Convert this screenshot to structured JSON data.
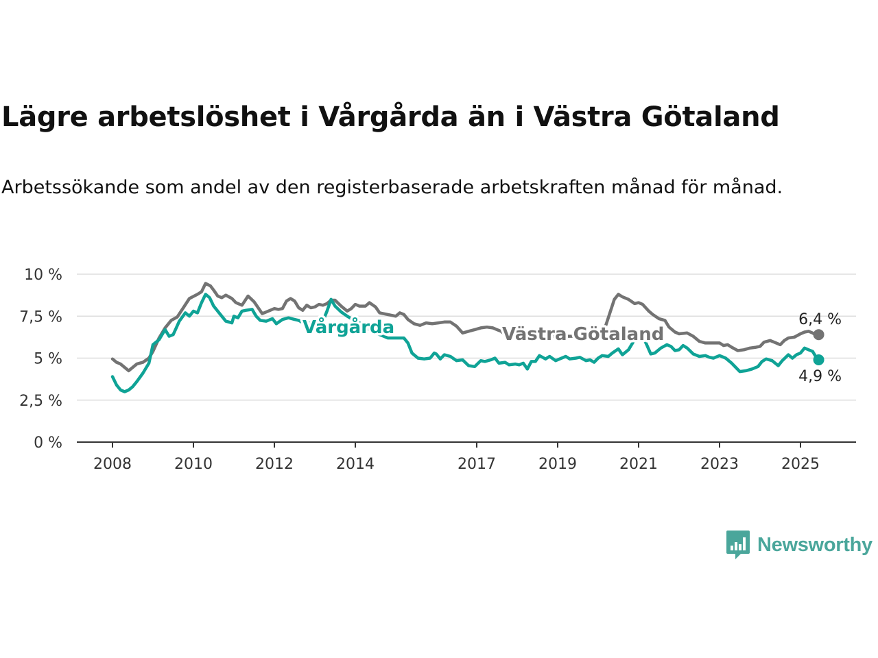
{
  "title": "Lägre arbetslöshet i Vårgårda än i Västra Götaland",
  "subtitle": "Arbetssökande som andel av den registerbaserade arbetskraften månad för månad.",
  "logo": {
    "text": "Newsworthy",
    "icon": "newsworthy-chart-icon",
    "color": "#4aa69b"
  },
  "chart_data": {
    "type": "line",
    "ylim": [
      0,
      10
    ],
    "y_ticks": [
      {
        "value": 0,
        "label": "0 %"
      },
      {
        "value": 2.5,
        "label": "2,5 %"
      },
      {
        "value": 5,
        "label": "5 %"
      },
      {
        "value": 7.5,
        "label": "7,5 %"
      },
      {
        "value": 10,
        "label": "10 %"
      }
    ],
    "x_ticks": [
      {
        "value": 2008,
        "label": "2008"
      },
      {
        "value": 2010,
        "label": "2010"
      },
      {
        "value": 2012,
        "label": "2012"
      },
      {
        "value": 2014,
        "label": "2014"
      },
      {
        "value": 2017,
        "label": "2017"
      },
      {
        "value": 2019,
        "label": "2019"
      },
      {
        "value": 2021,
        "label": "2021"
      },
      {
        "value": 2023,
        "label": "2023"
      },
      {
        "value": 2025,
        "label": "2025"
      }
    ],
    "grid": true,
    "series": [
      {
        "name": "Västra Götaland",
        "color": "#737373",
        "end_label": "6,4 %",
        "points": [
          [
            2008.0,
            4.95
          ],
          [
            2008.1,
            4.75
          ],
          [
            2008.2,
            4.65
          ],
          [
            2008.3,
            4.45
          ],
          [
            2008.4,
            4.25
          ],
          [
            2008.5,
            4.45
          ],
          [
            2008.6,
            4.65
          ],
          [
            2008.75,
            4.75
          ],
          [
            2008.9,
            5.0
          ],
          [
            2009.0,
            5.4
          ],
          [
            2009.15,
            6.2
          ],
          [
            2009.3,
            6.8
          ],
          [
            2009.45,
            7.25
          ],
          [
            2009.6,
            7.45
          ],
          [
            2009.75,
            8.0
          ],
          [
            2009.9,
            8.55
          ],
          [
            2010.1,
            8.8
          ],
          [
            2010.2,
            8.95
          ],
          [
            2010.3,
            9.45
          ],
          [
            2010.42,
            9.3
          ],
          [
            2010.5,
            9.05
          ],
          [
            2010.6,
            8.7
          ],
          [
            2010.7,
            8.6
          ],
          [
            2010.8,
            8.75
          ],
          [
            2010.95,
            8.55
          ],
          [
            2011.05,
            8.3
          ],
          [
            2011.2,
            8.15
          ],
          [
            2011.35,
            8.7
          ],
          [
            2011.5,
            8.35
          ],
          [
            2011.6,
            8.0
          ],
          [
            2011.7,
            7.65
          ],
          [
            2011.85,
            7.8
          ],
          [
            2012.0,
            7.95
          ],
          [
            2012.1,
            7.9
          ],
          [
            2012.2,
            7.95
          ],
          [
            2012.3,
            8.4
          ],
          [
            2012.4,
            8.55
          ],
          [
            2012.5,
            8.4
          ],
          [
            2012.6,
            8.0
          ],
          [
            2012.7,
            7.85
          ],
          [
            2012.8,
            8.15
          ],
          [
            2012.9,
            8.0
          ],
          [
            2013.0,
            8.05
          ],
          [
            2013.1,
            8.2
          ],
          [
            2013.2,
            8.15
          ],
          [
            2013.3,
            8.25
          ],
          [
            2013.4,
            8.45
          ],
          [
            2013.5,
            8.45
          ],
          [
            2013.65,
            8.1
          ],
          [
            2013.8,
            7.8
          ],
          [
            2013.9,
            7.95
          ],
          [
            2014.0,
            8.2
          ],
          [
            2014.1,
            8.1
          ],
          [
            2014.25,
            8.1
          ],
          [
            2014.35,
            8.3
          ],
          [
            2014.5,
            8.05
          ],
          [
            2014.6,
            7.7
          ],
          [
            2015.0,
            7.5
          ],
          [
            2015.1,
            7.7
          ],
          [
            2015.2,
            7.6
          ],
          [
            2015.3,
            7.3
          ],
          [
            2015.45,
            7.05
          ],
          [
            2015.6,
            6.95
          ],
          [
            2015.75,
            7.1
          ],
          [
            2015.9,
            7.05
          ],
          [
            2016.05,
            7.1
          ],
          [
            2016.2,
            7.15
          ],
          [
            2016.35,
            7.15
          ],
          [
            2016.5,
            6.9
          ],
          [
            2016.65,
            6.5
          ],
          [
            2016.8,
            6.6
          ],
          [
            2016.95,
            6.7
          ],
          [
            2017.1,
            6.8
          ],
          [
            2017.25,
            6.85
          ],
          [
            2017.4,
            6.8
          ],
          [
            2017.5,
            6.7
          ],
          [
            2017.6,
            6.6
          ],
          [
            2017.75,
            6.3
          ],
          [
            2018.2,
            6.3
          ],
          [
            2020.1,
            6.3
          ],
          [
            2020.25,
            7.4
          ],
          [
            2020.4,
            8.5
          ],
          [
            2020.5,
            8.8
          ],
          [
            2020.6,
            8.65
          ],
          [
            2020.75,
            8.5
          ],
          [
            2020.9,
            8.25
          ],
          [
            2021.0,
            8.3
          ],
          [
            2021.1,
            8.2
          ],
          [
            2021.25,
            7.8
          ],
          [
            2021.35,
            7.6
          ],
          [
            2021.5,
            7.35
          ],
          [
            2021.65,
            7.25
          ],
          [
            2021.75,
            6.85
          ],
          [
            2021.9,
            6.55
          ],
          [
            2022.0,
            6.45
          ],
          [
            2022.2,
            6.5
          ],
          [
            2022.35,
            6.3
          ],
          [
            2022.5,
            6.0
          ],
          [
            2022.65,
            5.9
          ],
          [
            2022.8,
            5.9
          ],
          [
            2023.0,
            5.9
          ],
          [
            2023.1,
            5.75
          ],
          [
            2023.2,
            5.8
          ],
          [
            2023.3,
            5.65
          ],
          [
            2023.45,
            5.45
          ],
          [
            2023.6,
            5.5
          ],
          [
            2023.75,
            5.6
          ],
          [
            2023.9,
            5.65
          ],
          [
            2024.0,
            5.7
          ],
          [
            2024.1,
            5.95
          ],
          [
            2024.25,
            6.05
          ],
          [
            2024.4,
            5.9
          ],
          [
            2024.5,
            5.8
          ],
          [
            2024.6,
            6.05
          ],
          [
            2024.7,
            6.2
          ],
          [
            2024.85,
            6.25
          ],
          [
            2025.0,
            6.45
          ],
          [
            2025.1,
            6.55
          ],
          [
            2025.2,
            6.6
          ],
          [
            2025.3,
            6.5
          ],
          [
            2025.4,
            6.35
          ],
          [
            2025.45,
            6.4
          ]
        ]
      },
      {
        "name": "Vårgårda",
        "color": "#0fa396",
        "end_label": "4,9 %",
        "points": [
          [
            2008.0,
            3.9
          ],
          [
            2008.1,
            3.4
          ],
          [
            2008.2,
            3.1
          ],
          [
            2008.3,
            3.0
          ],
          [
            2008.4,
            3.1
          ],
          [
            2008.5,
            3.3
          ],
          [
            2008.6,
            3.6
          ],
          [
            2008.75,
            4.1
          ],
          [
            2008.9,
            4.7
          ],
          [
            2009.0,
            5.8
          ],
          [
            2009.15,
            6.1
          ],
          [
            2009.3,
            6.7
          ],
          [
            2009.4,
            6.3
          ],
          [
            2009.5,
            6.4
          ],
          [
            2009.65,
            7.2
          ],
          [
            2009.8,
            7.7
          ],
          [
            2009.9,
            7.5
          ],
          [
            2010.0,
            7.8
          ],
          [
            2010.1,
            7.7
          ],
          [
            2010.2,
            8.3
          ],
          [
            2010.3,
            8.8
          ],
          [
            2010.4,
            8.6
          ],
          [
            2010.5,
            8.1
          ],
          [
            2010.6,
            7.8
          ],
          [
            2010.7,
            7.5
          ],
          [
            2010.8,
            7.2
          ],
          [
            2010.95,
            7.1
          ],
          [
            2011.0,
            7.5
          ],
          [
            2011.1,
            7.4
          ],
          [
            2011.2,
            7.8
          ],
          [
            2011.3,
            7.85
          ],
          [
            2011.45,
            7.9
          ],
          [
            2011.55,
            7.5
          ],
          [
            2011.65,
            7.25
          ],
          [
            2011.8,
            7.2
          ],
          [
            2011.95,
            7.35
          ],
          [
            2012.05,
            7.05
          ],
          [
            2012.2,
            7.3
          ],
          [
            2012.35,
            7.4
          ],
          [
            2012.5,
            7.3
          ],
          [
            2012.6,
            7.25
          ],
          [
            2012.75,
            7.05
          ],
          [
            2012.9,
            7.1
          ],
          [
            2013.0,
            7.05
          ],
          [
            2013.2,
            7.2
          ],
          [
            2013.3,
            7.8
          ],
          [
            2013.4,
            8.5
          ],
          [
            2013.5,
            8.1
          ],
          [
            2013.65,
            7.75
          ],
          [
            2013.8,
            7.5
          ],
          [
            2014.0,
            7.2
          ],
          [
            2014.2,
            7.0
          ],
          [
            2014.35,
            6.7
          ],
          [
            2014.5,
            6.5
          ],
          [
            2014.7,
            6.3
          ],
          [
            2014.8,
            6.2
          ],
          [
            2015.2,
            6.2
          ],
          [
            2015.3,
            5.9
          ],
          [
            2015.4,
            5.3
          ],
          [
            2015.55,
            5.0
          ],
          [
            2015.7,
            4.95
          ],
          [
            2015.85,
            5.0
          ],
          [
            2015.95,
            5.3
          ],
          [
            2016.0,
            5.25
          ],
          [
            2016.1,
            4.95
          ],
          [
            2016.2,
            5.2
          ],
          [
            2016.35,
            5.1
          ],
          [
            2016.5,
            4.85
          ],
          [
            2016.65,
            4.9
          ],
          [
            2016.8,
            4.55
          ],
          [
            2016.95,
            4.5
          ],
          [
            2017.1,
            4.85
          ],
          [
            2017.2,
            4.8
          ],
          [
            2017.35,
            4.9
          ],
          [
            2017.45,
            5.0
          ],
          [
            2017.55,
            4.7
          ],
          [
            2017.7,
            4.75
          ],
          [
            2017.8,
            4.6
          ],
          [
            2017.95,
            4.65
          ],
          [
            2018.05,
            4.6
          ],
          [
            2018.15,
            4.7
          ],
          [
            2018.25,
            4.35
          ],
          [
            2018.35,
            4.8
          ],
          [
            2018.45,
            4.8
          ],
          [
            2018.55,
            5.15
          ],
          [
            2018.7,
            4.95
          ],
          [
            2018.8,
            5.1
          ],
          [
            2018.95,
            4.85
          ],
          [
            2019.05,
            4.95
          ],
          [
            2019.2,
            5.1
          ],
          [
            2019.3,
            4.95
          ],
          [
            2019.45,
            5.0
          ],
          [
            2019.55,
            5.05
          ],
          [
            2019.7,
            4.85
          ],
          [
            2019.8,
            4.9
          ],
          [
            2019.9,
            4.75
          ],
          [
            2020.0,
            5.0
          ],
          [
            2020.1,
            5.15
          ],
          [
            2020.25,
            5.1
          ],
          [
            2020.35,
            5.3
          ],
          [
            2020.5,
            5.55
          ],
          [
            2020.6,
            5.2
          ],
          [
            2020.75,
            5.5
          ],
          [
            2020.9,
            6.1
          ],
          [
            2021.1,
            6.3
          ],
          [
            2021.2,
            5.8
          ],
          [
            2021.3,
            5.25
          ],
          [
            2021.4,
            5.3
          ],
          [
            2021.55,
            5.6
          ],
          [
            2021.7,
            5.8
          ],
          [
            2021.8,
            5.7
          ],
          [
            2021.9,
            5.45
          ],
          [
            2022.0,
            5.5
          ],
          [
            2022.1,
            5.75
          ],
          [
            2022.2,
            5.6
          ],
          [
            2022.35,
            5.25
          ],
          [
            2022.5,
            5.1
          ],
          [
            2022.65,
            5.15
          ],
          [
            2022.75,
            5.05
          ],
          [
            2022.85,
            5.0
          ],
          [
            2023.0,
            5.15
          ],
          [
            2023.15,
            5.0
          ],
          [
            2023.3,
            4.7
          ],
          [
            2023.4,
            4.45
          ],
          [
            2023.5,
            4.2
          ],
          [
            2023.65,
            4.25
          ],
          [
            2023.8,
            4.35
          ],
          [
            2023.95,
            4.5
          ],
          [
            2024.05,
            4.8
          ],
          [
            2024.15,
            4.95
          ],
          [
            2024.3,
            4.85
          ],
          [
            2024.45,
            4.55
          ],
          [
            2024.55,
            4.85
          ],
          [
            2024.7,
            5.2
          ],
          [
            2024.8,
            5.0
          ],
          [
            2024.9,
            5.2
          ],
          [
            2025.0,
            5.3
          ],
          [
            2025.1,
            5.6
          ],
          [
            2025.2,
            5.5
          ],
          [
            2025.3,
            5.4
          ],
          [
            2025.4,
            5.0
          ],
          [
            2025.45,
            4.9
          ]
        ]
      }
    ]
  }
}
